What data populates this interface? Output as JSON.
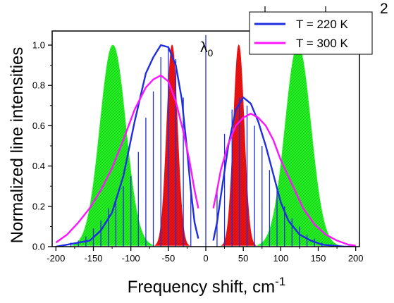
{
  "chart_data": {
    "type": "line",
    "xlabel": "Frequency shift, cm",
    "xlabel_superscript": "-1",
    "ylabel": "Normalized line intensities",
    "xlim": [
      -205,
      205
    ],
    "ylim": [
      0,
      1.07
    ],
    "x_ticks": [
      -200,
      -150,
      -100,
      -50,
      0,
      50,
      100,
      150,
      200
    ],
    "y_ticks": [
      0.0,
      0.2,
      0.4,
      0.6,
      0.8,
      1.0
    ],
    "y_tick_labels": [
      "0.0",
      "0.2",
      "0.4",
      "0.6",
      "0.8",
      "1.0"
    ],
    "annotation": {
      "text": "λ",
      "subscript": "0",
      "x": 0
    },
    "corner_text": "2",
    "legend": {
      "position": "top-right"
    },
    "colors": {
      "T220": "#1f2ee0",
      "T300": "#ff14ff",
      "green": "#22ee22",
      "red": "#ee1111"
    },
    "series": [
      {
        "name": "T = 220 K",
        "color": "#1f2ee0",
        "segments": [
          {
            "x": [
              -200,
              -185,
              -170,
              -155,
              -140,
              -125,
              -110,
              -95,
              -80,
              -70,
              -60,
              -50,
              -40,
              -32,
              -25,
              -20,
              -15,
              -10
            ],
            "y": [
              0.0,
              0.01,
              0.02,
              0.03,
              0.08,
              0.17,
              0.35,
              0.62,
              0.86,
              0.94,
              1.0,
              0.99,
              0.9,
              0.73,
              0.48,
              0.28,
              0.12,
              0.04
            ]
          },
          {
            "x": [
              10,
              15,
              20,
              30,
              40,
              50,
              60,
              70,
              80,
              90,
              100,
              110,
              125,
              140,
              155,
              170,
              185,
              200
            ],
            "y": [
              0.03,
              0.12,
              0.25,
              0.5,
              0.68,
              0.74,
              0.71,
              0.62,
              0.5,
              0.36,
              0.22,
              0.13,
              0.06,
              0.03,
              0.01,
              0.005,
              0.0,
              0.0
            ]
          }
        ]
      },
      {
        "name": "T = 300 K",
        "color": "#ff14ff",
        "segments": [
          {
            "x": [
              -200,
              -185,
              -170,
              -155,
              -140,
              -125,
              -110,
              -95,
              -80,
              -70,
              -60,
              -50,
              -40,
              -30,
              -22,
              -15,
              -10
            ],
            "y": [
              0.02,
              0.06,
              0.12,
              0.19,
              0.28,
              0.39,
              0.53,
              0.68,
              0.79,
              0.83,
              0.85,
              0.82,
              0.72,
              0.57,
              0.43,
              0.28,
              0.19
            ]
          },
          {
            "x": [
              10,
              15,
              20,
              30,
              40,
              50,
              60,
              70,
              80,
              90,
              100,
              115,
              130,
              145,
              160,
              175,
              190,
              200
            ],
            "y": [
              0.19,
              0.28,
              0.38,
              0.51,
              0.6,
              0.64,
              0.66,
              0.64,
              0.6,
              0.53,
              0.43,
              0.31,
              0.19,
              0.11,
              0.06,
              0.03,
              0.01,
              0.005
            ]
          }
        ]
      }
    ],
    "sticks": [
      {
        "x": -200,
        "y": 0.0
      },
      {
        "x": -190,
        "y": 0.01
      },
      {
        "x": -180,
        "y": 0.02
      },
      {
        "x": -170,
        "y": 0.03
      },
      {
        "x": -160,
        "y": 0.05
      },
      {
        "x": -150,
        "y": 0.09
      },
      {
        "x": -140,
        "y": 0.13
      },
      {
        "x": -130,
        "y": 0.19
      },
      {
        "x": -120,
        "y": 0.24
      },
      {
        "x": -110,
        "y": 0.3
      },
      {
        "x": -100,
        "y": 0.35
      },
      {
        "x": -90,
        "y": 0.47
      },
      {
        "x": -80,
        "y": 0.64
      },
      {
        "x": -70,
        "y": 0.77
      },
      {
        "x": -60,
        "y": 0.94
      },
      {
        "x": -50,
        "y": 0.99
      },
      {
        "x": -40,
        "y": 0.93
      },
      {
        "x": -30,
        "y": 0.74
      },
      {
        "x": -20,
        "y": 0.27
      },
      {
        "x": 0,
        "y": 1.05
      },
      {
        "x": 15,
        "y": 0.29
      },
      {
        "x": 25,
        "y": 0.56
      },
      {
        "x": 35,
        "y": 0.68
      },
      {
        "x": 45,
        "y": 0.74
      },
      {
        "x": 55,
        "y": 0.7
      },
      {
        "x": 65,
        "y": 0.6
      },
      {
        "x": 75,
        "y": 0.5
      },
      {
        "x": 85,
        "y": 0.38
      },
      {
        "x": 95,
        "y": 0.28
      },
      {
        "x": 105,
        "y": 0.2
      },
      {
        "x": 115,
        "y": 0.14
      },
      {
        "x": 125,
        "y": 0.1
      },
      {
        "x": 135,
        "y": 0.06
      },
      {
        "x": 145,
        "y": 0.04
      },
      {
        "x": 155,
        "y": 0.02
      },
      {
        "x": 170,
        "y": 0.01
      }
    ],
    "filled_peaks": [
      {
        "color": "#22ee22",
        "center": -124,
        "height": 1.0,
        "width": 17
      },
      {
        "color": "#ee1111",
        "center": -45,
        "height": 1.0,
        "width": 7
      },
      {
        "color": "#ee1111",
        "center": 44,
        "height": 1.0,
        "width": 7
      },
      {
        "color": "#22ee22",
        "center": 123,
        "height": 1.0,
        "width": 17
      }
    ]
  }
}
